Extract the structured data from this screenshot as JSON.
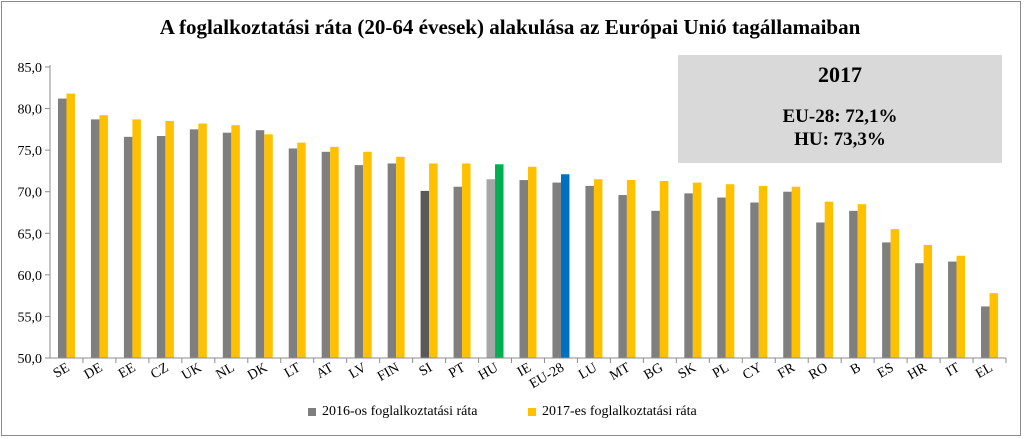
{
  "chart_data": {
    "type": "bar",
    "title": "A foglalkoztatási ráta (20-64 évesek) alakulása  az Európai Unió tagállamaiban",
    "categories": [
      "SE",
      "DE",
      "EE",
      "CZ",
      "UK",
      "NL",
      "DK",
      "LT",
      "AT",
      "LV",
      "FIN",
      "SI",
      "PT",
      "HU",
      "IE",
      "EU-28",
      "LU",
      "MT",
      "BG",
      "SK",
      "PL",
      "CY",
      "FR",
      "RO",
      "B",
      "ES",
      "HR",
      "IT",
      "EL"
    ],
    "series": [
      {
        "name": "2016-os foglalkoztatási ráta",
        "color": "#7f7f7f",
        "values": [
          81.2,
          78.7,
          76.6,
          76.7,
          77.5,
          77.1,
          77.4,
          75.2,
          74.8,
          73.2,
          73.4,
          70.1,
          70.6,
          71.5,
          71.4,
          71.1,
          70.7,
          69.6,
          67.7,
          69.8,
          69.3,
          68.7,
          70.0,
          66.3,
          67.7,
          63.9,
          61.4,
          61.6,
          56.2
        ]
      },
      {
        "name": "2017-es foglalkoztatási ráta",
        "color": "#ffc000",
        "values": [
          81.8,
          79.2,
          78.7,
          78.5,
          78.2,
          78.0,
          76.9,
          75.9,
          75.4,
          74.8,
          74.2,
          73.4,
          73.4,
          73.3,
          73.0,
          72.1,
          71.5,
          71.4,
          71.3,
          71.1,
          70.9,
          70.7,
          70.6,
          68.8,
          68.5,
          65.5,
          63.6,
          62.3,
          57.8
        ]
      }
    ],
    "highlights": [
      {
        "category": "HU",
        "series": "2017-es foglalkoztatási ráta",
        "color": "#00b050"
      },
      {
        "category": "EU-28",
        "series": "2017-es foglalkoztatási ráta",
        "color": "#0070c0"
      },
      {
        "category": "SI",
        "series": "2016-os foglalkoztatási ráta",
        "color": "#595959"
      },
      {
        "category": "HU",
        "series": "2016-os foglalkoztatási ráta",
        "color": "#a6a6a6"
      }
    ],
    "ylim": [
      50,
      85
    ],
    "yticks": [
      "85,0",
      "80,0",
      "75,0",
      "70,0",
      "65,0",
      "60,0",
      "55,0",
      "50,0"
    ],
    "ytick_values": [
      85,
      80,
      75,
      70,
      65,
      60,
      55,
      50
    ],
    "grid": false,
    "legend_position": "bottom",
    "xlabel": "",
    "ylabel": ""
  },
  "annotation": {
    "year": "2017",
    "eu": "EU-28: 72,1%",
    "hu": "HU: 73,3%"
  },
  "legend": [
    {
      "label": "2016-os foglalkoztatási ráta",
      "color": "#7f7f7f"
    },
    {
      "label": "2017-es foglalkoztatási ráta",
      "color": "#ffc000"
    }
  ]
}
